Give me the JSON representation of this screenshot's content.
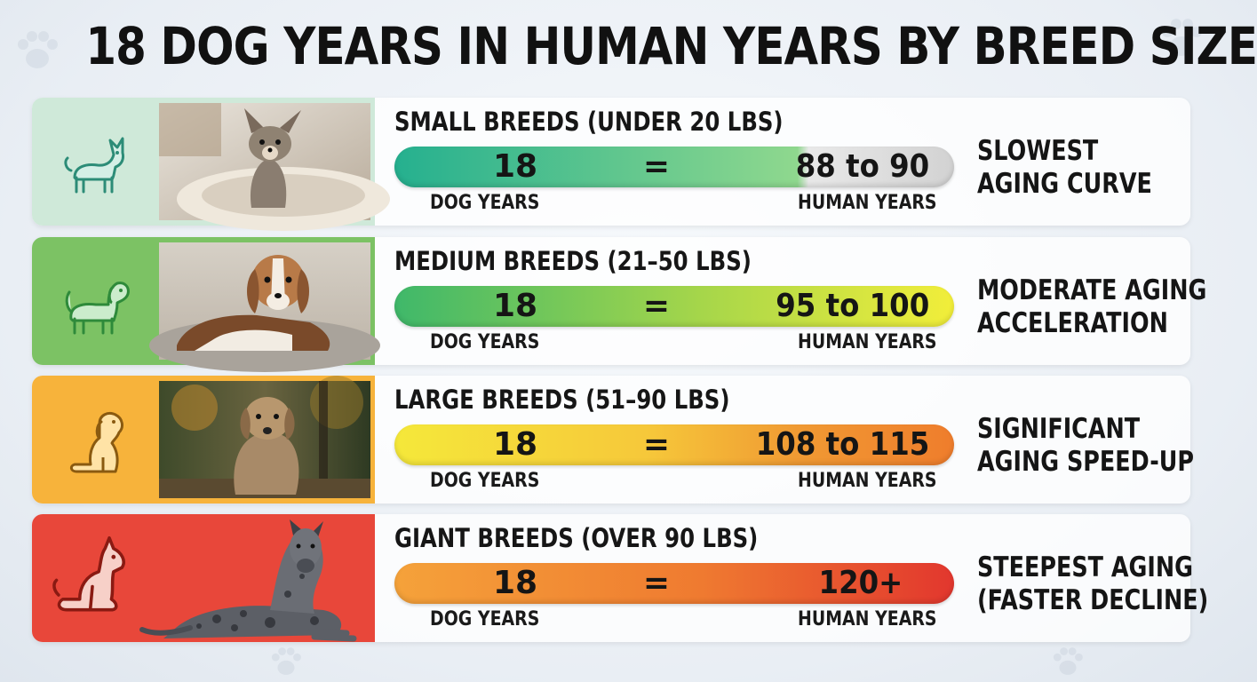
{
  "title": "18 DOG YEARS IN HUMAN YEARS BY BREED SIZE",
  "rows": [
    {
      "category": "SMALL BREEDS (UNDER 20 LBS)",
      "dog_years": "18",
      "equals": "=",
      "human_years": "88 to 90",
      "dog_label": "DOG YEARS",
      "human_label": "HUMAN YEARS",
      "desc_line1": "SLOWEST",
      "desc_line2": "AGING CURVE",
      "icon": "chihuahua-icon",
      "panel_color": "#cfe9d9",
      "bar_colors": [
        "#25b08f",
        "#8fd88e",
        "#d8d8d8"
      ]
    },
    {
      "category": "MEDIUM BREEDS (21–50 LBS)",
      "dog_years": "18",
      "equals": "=",
      "human_years": "95 to 100",
      "dog_label": "DOG YEARS",
      "human_label": "HUMAN YEARS",
      "desc_line1": "MODERATE AGING",
      "desc_line2": "ACCELERATION",
      "icon": "beagle-icon",
      "panel_color": "#7cc264",
      "bar_colors": [
        "#3fb86a",
        "#a6d64a",
        "#f2ee3a"
      ]
    },
    {
      "category": "LARGE BREEDS (51–90 LBS)",
      "dog_years": "18",
      "equals": "=",
      "human_years": "108 to 115",
      "dog_label": "DOG YEARS",
      "human_label": "HUMAN YEARS",
      "desc_line1": "SIGNIFICANT",
      "desc_line2": "AGING SPEED-UP",
      "icon": "sitting-dog-icon",
      "panel_color": "#f7b33b",
      "bar_colors": [
        "#f5e83a",
        "#f6b53a",
        "#ef7d2c"
      ]
    },
    {
      "category": "GIANT BREEDS (OVER 90 LBS)",
      "dog_years": "18",
      "equals": "=",
      "human_years": "120+",
      "dog_label": "DOG YEARS",
      "human_label": "HUMAN YEARS",
      "desc_line1": "STEEPEST AGING",
      "desc_line2": "(FASTER DECLINE)",
      "icon": "great-dane-icon",
      "panel_color": "#e8473a",
      "bar_colors": [
        "#f5a23a",
        "#ef6b2e",
        "#e2372e"
      ]
    }
  ]
}
